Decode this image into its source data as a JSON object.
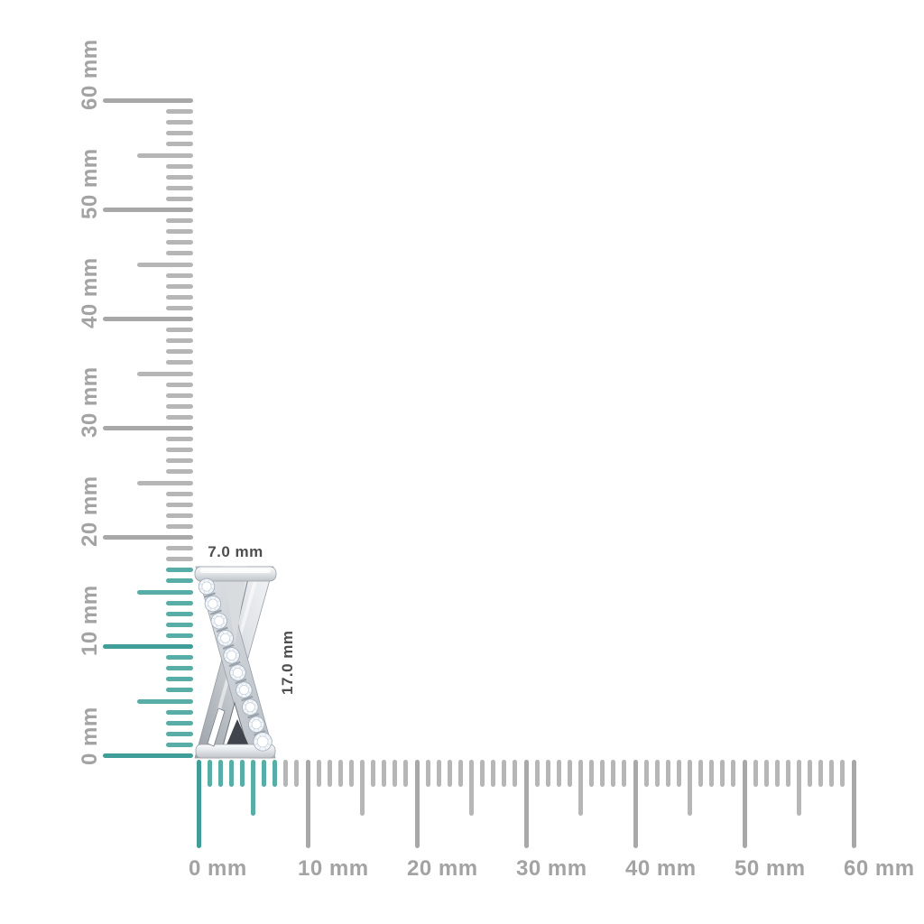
{
  "page": {
    "background_color": "#ffffff"
  },
  "product": {
    "description": "White gold criss-cross X pendant set with a diagonal row of round diamonds",
    "width_label": "7.0 mm",
    "height_label": "17.0 mm",
    "stone_count": 10,
    "dimension_label_color": "#4e4e4e",
    "metal_light_color": "#f5f7f8",
    "metal_mid_color": "#c3c8cd",
    "metal_dark_color": "#40454d"
  },
  "rulers": {
    "unit": "mm",
    "max_mm": 60,
    "minor_step_mm": 1,
    "half_step_mm": 5,
    "major_step_mm": 10,
    "vertical": {
      "labels": [
        "0 mm",
        "10 mm",
        "20 mm",
        "30 mm",
        "40 mm",
        "50 mm",
        "60 mm"
      ],
      "highlight_extent_mm": 17
    },
    "horizontal": {
      "labels": [
        "0 mm",
        "10 mm",
        "20 mm",
        "30 mm",
        "40 mm",
        "50 mm",
        "60 mm"
      ],
      "highlight_extent_mm": 7
    },
    "colors": {
      "highlight": "#58ada6",
      "highlight_major": "#3f9e97",
      "gray": "#b6b6b6",
      "gray_major": "#a8a8a8",
      "label": "#a3a3a3"
    }
  }
}
